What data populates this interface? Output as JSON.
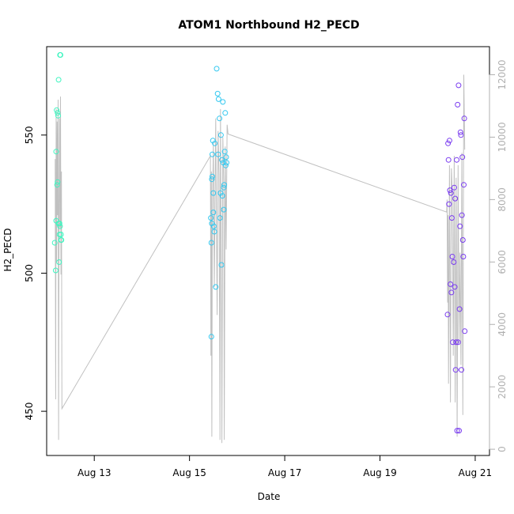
{
  "chart_data": {
    "type": "scatter",
    "title": "ATOM1 Northbound H2_PECD",
    "xlabel": "Date",
    "ylabel": "H2_PECD",
    "x_ticks": [
      "Aug 13",
      "Aug 15",
      "Aug 17",
      "Aug 19",
      "Aug 21"
    ],
    "x_tick_values": [
      13,
      15,
      17,
      19,
      21
    ],
    "xlim": [
      12.0,
      21.3
    ],
    "y_left_ticks": [
      450,
      500,
      550
    ],
    "ylim_left": [
      434,
      582
    ],
    "y_right_ticks": [
      0,
      2000,
      4000,
      6000,
      8000,
      10000,
      12000
    ],
    "ylim_right": [
      -200,
      12900
    ],
    "grid": false,
    "colors": {
      "cluster1": "#3ff5c0",
      "cluster2": "#33c8f0",
      "cluster3": "#7a3cf0",
      "secondary_line": "#c0c0c0",
      "right_axis": "#b0b0b0"
    },
    "series": [
      {
        "color": "#3ff5c0",
        "x": [
          12.17,
          12.19,
          12.2,
          12.2,
          12.21,
          12.22,
          12.23,
          12.23,
          12.24,
          12.25,
          12.25,
          12.26,
          12.27,
          12.27,
          12.28,
          12.28,
          12.29,
          12.3,
          12.3,
          12.31
        ],
        "y": [
          511,
          501,
          544,
          519,
          559,
          532,
          533,
          558,
          557,
          518,
          570,
          504,
          514,
          518,
          517,
          579,
          579,
          514,
          512,
          512
        ]
      },
      {
        "color": "#33c8f0",
        "x": [
          15.45,
          15.46,
          15.46,
          15.47,
          15.47,
          15.48,
          15.48,
          15.49,
          15.5,
          15.5,
          15.51,
          15.52,
          15.53,
          15.55,
          15.57,
          15.59,
          15.6,
          15.61,
          15.63,
          15.64,
          15.65,
          15.66,
          15.67,
          15.68,
          15.69,
          15.7,
          15.71,
          15.72,
          15.72,
          15.73,
          15.74,
          15.75,
          15.76,
          15.77,
          15.78
        ],
        "y": [
          520,
          511,
          477,
          534,
          518,
          543,
          535,
          548,
          522,
          529,
          517,
          515,
          547,
          495,
          574,
          565,
          543,
          563,
          556,
          520,
          529,
          550,
          503,
          541,
          528,
          562,
          540,
          531,
          523,
          532,
          544,
          558,
          539,
          542,
          540
        ]
      },
      {
        "color": "#7a3cf0",
        "x": [
          20.42,
          20.43,
          20.44,
          20.45,
          20.46,
          20.47,
          20.48,
          20.49,
          20.5,
          20.51,
          20.52,
          20.53,
          20.55,
          20.56,
          20.57,
          20.58,
          20.59,
          20.6,
          20.61,
          20.62,
          20.63,
          20.64,
          20.65,
          20.66,
          20.67,
          20.68,
          20.69,
          20.7,
          20.71,
          20.72,
          20.73,
          20.74,
          20.75,
          20.76,
          20.77,
          20.78
        ],
        "y": [
          485,
          547,
          541,
          525,
          548,
          530,
          496,
          529,
          493,
          520,
          506,
          475,
          504,
          531,
          495,
          527,
          465,
          475,
          541,
          443,
          561,
          475,
          568,
          443,
          487,
          517,
          551,
          550,
          465,
          521,
          542,
          512,
          506,
          532,
          556,
          479
        ]
      }
    ],
    "secondary_series": {
      "x": [
        12.18,
        12.19,
        12.2,
        12.21,
        12.22,
        12.23,
        12.24,
        12.25,
        12.26,
        12.27,
        12.28,
        12.29,
        12.3,
        12.31,
        12.32,
        15.44,
        15.45,
        15.46,
        15.47,
        15.48,
        15.5,
        15.52,
        15.55,
        15.58,
        15.6,
        15.62,
        15.64,
        15.65,
        15.67,
        15.68,
        15.7,
        15.72,
        15.73,
        15.75,
        15.77,
        15.79,
        15.81,
        20.4,
        20.41,
        20.42,
        20.43,
        20.44,
        20.46,
        20.48,
        20.5,
        20.52,
        20.54,
        20.56,
        20.58,
        20.6,
        20.62,
        20.64,
        20.66,
        20.68,
        20.7,
        20.72,
        20.74,
        20.76,
        20.78
      ],
      "y": [
        9300,
        1600,
        10900,
        6000,
        10500,
        7500,
        11200,
        300,
        7800,
        10600,
        7100,
        11300,
        5600,
        8900,
        1300,
        9400,
        3000,
        8900,
        400,
        7200,
        9800,
        5200,
        10600,
        4300,
        10200,
        8800,
        300,
        10900,
        5400,
        200,
        10000,
        8500,
        300,
        9700,
        6400,
        10400,
        10100,
        7600,
        8000,
        4700,
        7500,
        2100,
        9100,
        1500,
        9000,
        8200,
        3000,
        9400,
        1500,
        8700,
        400,
        9100,
        3400,
        6300,
        2700,
        9500,
        1100,
        12000,
        9600
      ]
    }
  }
}
